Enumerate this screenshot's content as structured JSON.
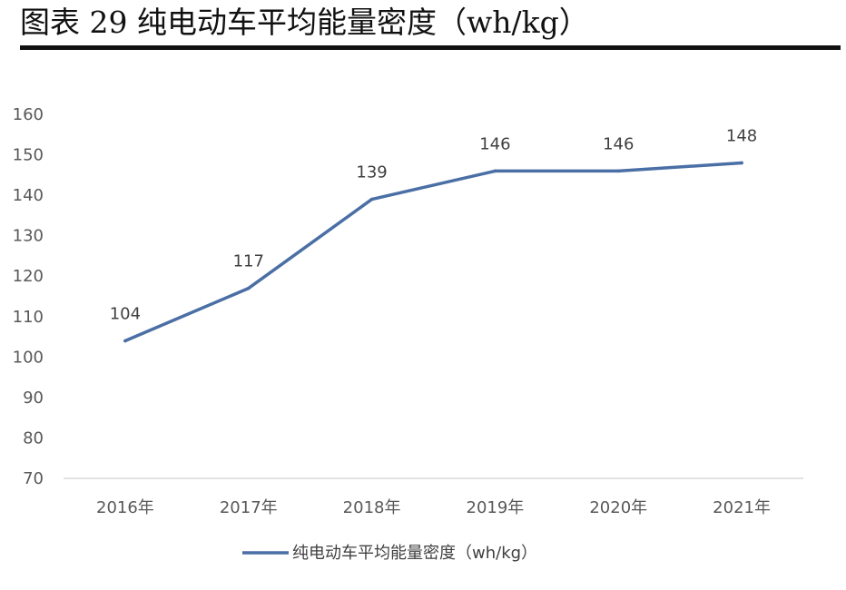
{
  "figure": {
    "title": "图表 29 纯电动车平均能量密度（wh/kg）"
  },
  "chart_data": {
    "type": "line",
    "categories": [
      "2016年",
      "2017年",
      "2018年",
      "2019年",
      "2020年",
      "2021年"
    ],
    "series": [
      {
        "name": "纯电动车平均能量密度（wh/kg）",
        "values": [
          104,
          117,
          139,
          146,
          146,
          148
        ],
        "color": "#4a6fa5"
      }
    ],
    "ylim": [
      70,
      160
    ],
    "yticks": [
      70,
      80,
      90,
      100,
      110,
      120,
      130,
      140,
      150,
      160
    ],
    "data_labels": [
      "104",
      "117",
      "139",
      "146",
      "146",
      "148"
    ],
    "grid": false,
    "legend_position": "bottom"
  }
}
